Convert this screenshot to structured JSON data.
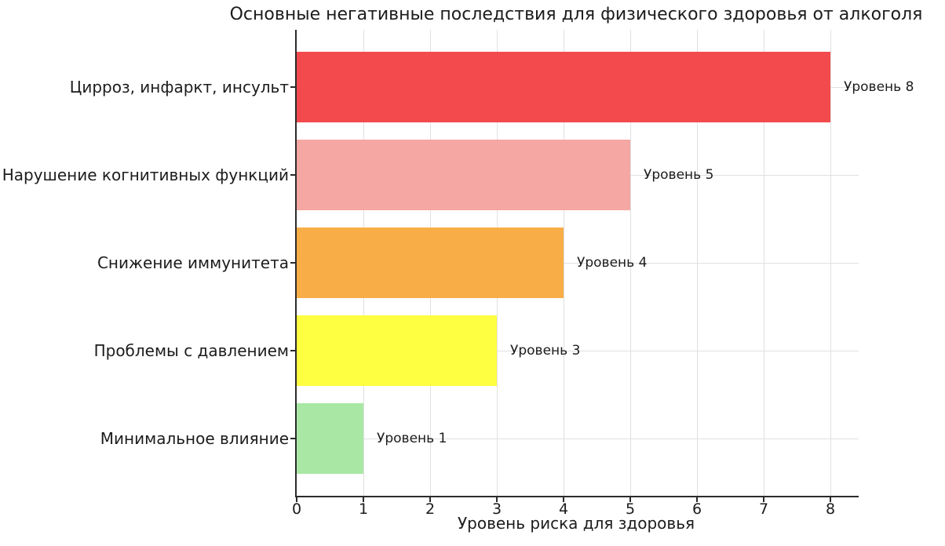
{
  "chart_data": {
    "type": "bar",
    "orientation": "horizontal",
    "title": "Основные негативные последствия для физического здоровья от алкоголя",
    "xlabel": "Уровень риска для здоровья",
    "ylabel": "",
    "categories": [
      "Цирроз, инфаркт, инсульт",
      "Нарушение когнитивных функций",
      "Снижение иммунитета",
      "Проблемы с давлением",
      "Минимальное влияние"
    ],
    "values": [
      8,
      5,
      4,
      3,
      1
    ],
    "bar_labels": [
      "Уровень 8",
      "Уровень 5",
      "Уровень 4",
      "Уровень 3",
      "Уровень 1"
    ],
    "bar_colors": [
      "#f34a4d",
      "#f4a7a3",
      "#f8ad47",
      "#feff40",
      "#a9e8a4"
    ],
    "x_ticks": [
      0,
      1,
      2,
      3,
      4,
      5,
      6,
      7,
      8
    ],
    "xlim": [
      0,
      8.42
    ],
    "grid": "both",
    "legend_position": "none"
  }
}
